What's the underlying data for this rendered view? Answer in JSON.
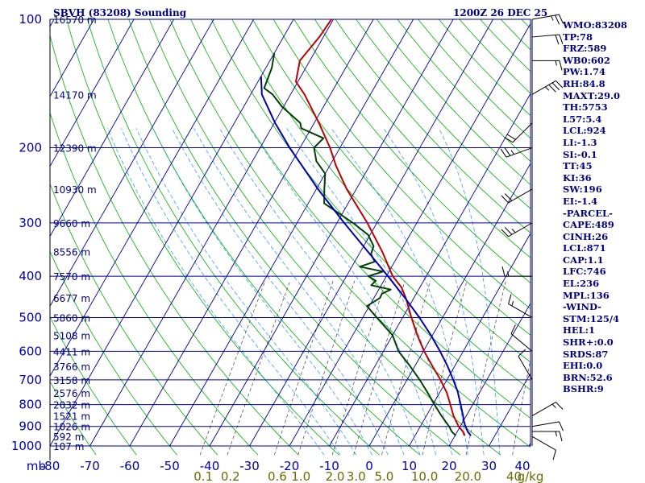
{
  "chart_data": {
    "type": "skew-t sounding",
    "title": "SBVH (83208) Sounding",
    "valid_time": "1200Z 26 DEC 25",
    "pressure_label": "mb",
    "pressure_levels_mb": [
      100,
      200,
      300,
      400,
      500,
      600,
      700,
      800,
      900,
      1000
    ],
    "pressure_range_mb": [
      100,
      1000
    ],
    "temperature_ticks_c": [
      -80,
      -70,
      -60,
      -50,
      -40,
      -30,
      -20,
      -10,
      0,
      10,
      20,
      30,
      40
    ],
    "mixing_ratio_labels": [
      "0.1",
      "0.2",
      "0.6",
      "1.0",
      "2.0",
      "3.0",
      "5.0",
      "10.0",
      "20.0",
      "40",
      "g/kg"
    ],
    "mixing_ratio_values": [
      0.1,
      0.2,
      0.6,
      1.0,
      2.0,
      3.0,
      5.0,
      10.0,
      20.0,
      40
    ],
    "height_labels": [
      {
        "p": 100,
        "text": "16570 m"
      },
      {
        "p": 150,
        "text": "14170 m"
      },
      {
        "p": 200,
        "text": "12390 m"
      },
      {
        "p": 250,
        "text": "10930 m"
      },
      {
        "p": 300,
        "text": "9660 m"
      },
      {
        "p": 350,
        "text": "8556 m"
      },
      {
        "p": 400,
        "text": "7570 m"
      },
      {
        "p": 450,
        "text": "6677 m"
      },
      {
        "p": 500,
        "text": "5860 m"
      },
      {
        "p": 550,
        "text": "5108 m"
      },
      {
        "p": 600,
        "text": "4411 m"
      },
      {
        "p": 650,
        "text": "3766 m"
      },
      {
        "p": 700,
        "text": "3158 m"
      },
      {
        "p": 750,
        "text": "2576 m"
      },
      {
        "p": 800,
        "text": "2032 m"
      },
      {
        "p": 850,
        "text": "1521 m"
      },
      {
        "p": 900,
        "text": "1026 m"
      },
      {
        "p": 950,
        "text": "592 m"
      },
      {
        "p": 1000,
        "text": "107 m"
      }
    ],
    "series": [
      {
        "name": "Temperature",
        "color": "#c00000",
        "points": [
          [
            946,
            22.4
          ],
          [
            925,
            21.4
          ],
          [
            900,
            19.6
          ],
          [
            850,
            16.8
          ],
          [
            800,
            14.4
          ],
          [
            750,
            11.8
          ],
          [
            700,
            8.4
          ],
          [
            650,
            4.4
          ],
          [
            600,
            0.2
          ],
          [
            550,
            -3.8
          ],
          [
            500,
            -7.8
          ],
          [
            450,
            -12.0
          ],
          [
            425,
            -14.6
          ],
          [
            400,
            -18.4
          ],
          [
            350,
            -24.6
          ],
          [
            300,
            -32.4
          ],
          [
            250,
            -42.4
          ],
          [
            220,
            -48.5
          ],
          [
            200,
            -52.5
          ],
          [
            175,
            -58.8
          ],
          [
            150,
            -66.5
          ],
          [
            140,
            -70.5
          ],
          [
            125,
            -72.5
          ],
          [
            110,
            -71.0
          ],
          [
            100,
            -70.5
          ]
        ]
      },
      {
        "name": "Dewpoint",
        "color": "#004000",
        "points": [
          [
            946,
            20.2
          ],
          [
            925,
            18.6
          ],
          [
            900,
            17.2
          ],
          [
            850,
            13.8
          ],
          [
            800,
            10.4
          ],
          [
            750,
            7.0
          ],
          [
            700,
            3.2
          ],
          [
            650,
            -1.2
          ],
          [
            600,
            -6.2
          ],
          [
            550,
            -10.0
          ],
          [
            500,
            -16.5
          ],
          [
            470,
            -20.6
          ],
          [
            450,
            -18.5
          ],
          [
            440,
            -18.6
          ],
          [
            430,
            -17.0
          ],
          [
            420,
            -22.5
          ],
          [
            410,
            -22.0
          ],
          [
            400,
            -24.5
          ],
          [
            390,
            -21.5
          ],
          [
            380,
            -28.0
          ],
          [
            370,
            -25.0
          ],
          [
            355,
            -27.0
          ],
          [
            340,
            -27.5
          ],
          [
            320,
            -30.5
          ],
          [
            300,
            -36.0
          ],
          [
            270,
            -46.0
          ],
          [
            250,
            -48.0
          ],
          [
            230,
            -50.0
          ],
          [
            215,
            -54.0
          ],
          [
            200,
            -56.5
          ],
          [
            190,
            -55.5
          ],
          [
            180,
            -62.5
          ],
          [
            175,
            -63.5
          ],
          [
            160,
            -70.5
          ],
          [
            150,
            -74.5
          ],
          [
            145,
            -77.5
          ],
          [
            130,
            -78.5
          ],
          [
            120,
            -80.0
          ]
        ]
      },
      {
        "name": "Parcel",
        "color": "#0000b0",
        "points": [
          [
            946,
            24.0
          ],
          [
            925,
            22.6
          ],
          [
            900,
            21.3
          ],
          [
            871,
            20.0
          ],
          [
            850,
            19.2
          ],
          [
            800,
            17.0
          ],
          [
            746,
            14.4
          ],
          [
            700,
            11.6
          ],
          [
            650,
            8.2
          ],
          [
            600,
            4.2
          ],
          [
            550,
            -0.4
          ],
          [
            500,
            -5.8
          ],
          [
            450,
            -12.2
          ],
          [
            400,
            -19.6
          ],
          [
            350,
            -28.2
          ],
          [
            300,
            -38.2
          ],
          [
            250,
            -49.6
          ],
          [
            200,
            -62.6
          ],
          [
            175,
            -69.8
          ],
          [
            150,
            -77.2
          ],
          [
            136,
            -80.0
          ]
        ]
      }
    ]
  },
  "wind_barbs": [
    {
      "p": 100,
      "dir": 80,
      "spd": 25
    },
    {
      "p": 110,
      "dir": 85,
      "spd": 20
    },
    {
      "p": 125,
      "dir": 90,
      "spd": 15
    },
    {
      "p": 150,
      "dir": 60,
      "spd": 35
    },
    {
      "p": 175,
      "dir": 225,
      "spd": 20
    },
    {
      "p": 200,
      "dir": 250,
      "spd": 25
    },
    {
      "p": 250,
      "dir": 240,
      "spd": 20
    },
    {
      "p": 300,
      "dir": 240,
      "spd": 25
    },
    {
      "p": 400,
      "dir": 270,
      "spd": 15
    },
    {
      "p": 500,
      "dir": 300,
      "spd": 15
    },
    {
      "p": 600,
      "dir": 310,
      "spd": 10
    },
    {
      "p": 700,
      "dir": 330,
      "spd": 10
    },
    {
      "p": 850,
      "dir": 60,
      "spd": 15
    },
    {
      "p": 900,
      "dir": 80,
      "spd": 10
    },
    {
      "p": 925,
      "dir": 90,
      "spd": 15
    },
    {
      "p": 950,
      "dir": 120,
      "spd": 10
    }
  ],
  "params": [
    "WMO:83208",
    "TP:78",
    "FRZ:589",
    "WB0:602",
    "PW:1.74",
    "RH:84.8",
    "MAXT:29.0",
    "TH:5753",
    "L57:5.4",
    "LCL:924",
    "LI:-1.3",
    "SI:-0.1",
    "TT:45",
    "KI:36",
    "SW:196",
    "EI:-1.4",
    "-PARCEL-",
    "CAPE:489",
    "CINH:26",
    "LCL:871",
    "CAP:1.1",
    "LFC:746",
    "EL:236",
    "MPL:136",
    "-WIND-",
    "STM:125/4",
    "HEL:1",
    "SHR+:0.0",
    "SRDS:87",
    "EHI:0.0",
    "BRN:52.6",
    "BSHR:9"
  ],
  "colors": {
    "isobar": "#0000a0",
    "isotherm": "#0000a0",
    "dry_adiabat": "#00b000",
    "moist_adiabat": "#1e90ff",
    "mixing_ratio": "#404040",
    "height_text": "#000080",
    "temp_text": "#0000b0",
    "mixing_text": "#6b6b00",
    "text": "#000080"
  }
}
